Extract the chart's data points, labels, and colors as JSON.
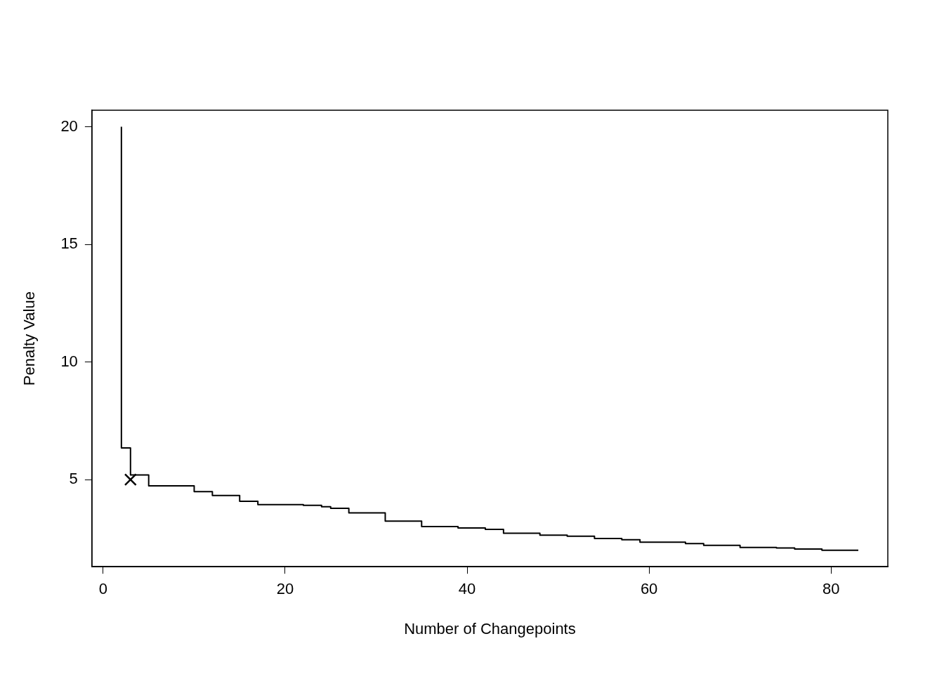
{
  "chart_data": {
    "type": "step",
    "xlabel": "Number of Changepoints",
    "ylabel": "Penalty Value",
    "x": [
      2,
      2,
      3,
      5,
      10,
      12,
      15,
      17,
      22,
      24,
      25,
      27,
      31,
      35,
      39,
      42,
      44,
      48,
      51,
      54,
      57,
      59,
      64,
      66,
      70,
      74,
      76,
      79,
      83
    ],
    "series": [
      {
        "color": "#000000",
        "values": [
          20,
          6.35,
          5.2,
          4.74,
          4.49,
          4.33,
          4.08,
          3.94,
          3.91,
          3.85,
          3.78,
          3.59,
          3.24,
          3.01,
          2.95,
          2.89,
          2.72,
          2.64,
          2.6,
          2.5,
          2.45,
          2.34,
          2.28,
          2.21,
          2.12,
          2.1,
          2.05,
          2.0,
          2.0
        ]
      },
      {
        "type": "scatter",
        "marker": "cross",
        "color": "#000000",
        "x": [
          3
        ],
        "values": [
          5
        ]
      }
    ],
    "xlim": [
      -1.24,
      86.24
    ],
    "ylim": [
      1.3,
      20.7
    ],
    "xticks": [
      0,
      20,
      40,
      60,
      80
    ],
    "yticks": [
      5,
      10,
      15,
      20
    ],
    "grid": false,
    "legend": false,
    "marker": "none",
    "line_style": "solid"
  }
}
